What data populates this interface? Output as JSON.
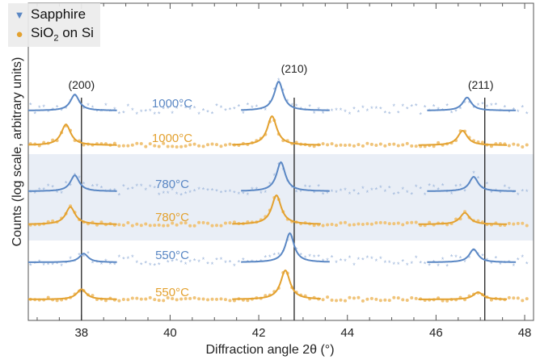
{
  "chart_data": {
    "type": "scatter",
    "xlabel": "Diffraction angle 2θ (°)",
    "ylabel": "Counts (log scale, arbitrary units)",
    "xlim": [
      36.8,
      48.2
    ],
    "x_ticks": [
      38,
      40,
      42,
      44,
      46,
      48
    ],
    "grid": false,
    "legend_position": "top-left",
    "legend": [
      {
        "name": "Sapphire",
        "marker": "triangle-down",
        "color": "#5a87c4"
      },
      {
        "name": "SiO",
        "sub": "2",
        "suffix": " on Si",
        "marker": "circle",
        "color": "#e3a12f"
      }
    ],
    "reference_lines": [
      {
        "x": 38.0,
        "label": "(200)"
      },
      {
        "x": 42.8,
        "label": "(210)"
      },
      {
        "x": 47.1,
        "label": "(211)"
      }
    ],
    "shaded_band": "780°C",
    "traces": [
      {
        "substrate": "Sapphire",
        "temperature": "1000°C",
        "peaks": [
          {
            "center": 37.85,
            "height": 0.55
          },
          {
            "center": 42.45,
            "height": 1.0
          },
          {
            "center": 46.7,
            "height": 0.45
          }
        ]
      },
      {
        "substrate": "SiO2 on Si",
        "temperature": "1000°C",
        "peaks": [
          {
            "center": 37.65,
            "height": 0.72
          },
          {
            "center": 42.3,
            "height": 1.0
          },
          {
            "center": 46.6,
            "height": 0.5
          }
        ]
      },
      {
        "substrate": "Sapphire",
        "temperature": "780°C",
        "peaks": [
          {
            "center": 37.85,
            "height": 0.55
          },
          {
            "center": 42.5,
            "height": 1.0
          },
          {
            "center": 46.85,
            "height": 0.5
          }
        ]
      },
      {
        "substrate": "SiO2 on Si",
        "temperature": "780°C",
        "peaks": [
          {
            "center": 37.75,
            "height": 0.6
          },
          {
            "center": 42.4,
            "height": 1.0
          },
          {
            "center": 46.65,
            "height": 0.4
          }
        ]
      },
      {
        "substrate": "Sapphire",
        "temperature": "550°C",
        "peaks": [
          {
            "center": 38.05,
            "height": 0.3
          },
          {
            "center": 42.7,
            "height": 1.0
          },
          {
            "center": 46.85,
            "height": 0.45
          }
        ]
      },
      {
        "substrate": "SiO2 on Si",
        "temperature": "550°C",
        "peaks": [
          {
            "center": 38.0,
            "height": 0.35
          },
          {
            "center": 42.6,
            "height": 1.0
          },
          {
            "center": 46.95,
            "height": 0.25
          }
        ]
      }
    ]
  }
}
